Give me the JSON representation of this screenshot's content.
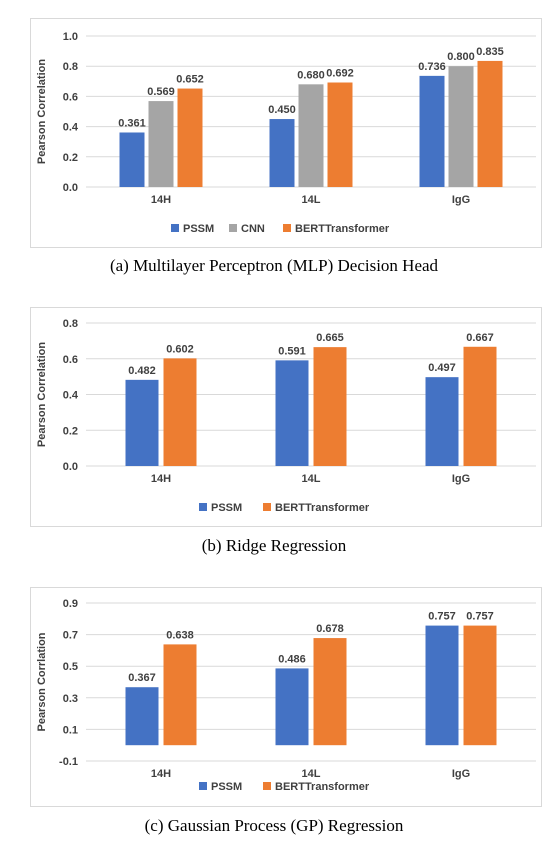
{
  "chart_data": [
    {
      "type": "bar",
      "caption": "(a) Multilayer Perceptron (MLP) Decision Head",
      "ylabel": "Pearson Correlation",
      "ylim": [
        0,
        1.0
      ],
      "yticks": [
        "0.0",
        "0.2",
        "0.4",
        "0.6",
        "0.8",
        "1.0"
      ],
      "ytick_values": [
        0,
        0.2,
        0.4,
        0.6,
        0.8,
        1.0
      ],
      "categories": [
        "14H",
        "14L",
        "IgG"
      ],
      "series": [
        {
          "name": "PSSM",
          "color": "#4472c4",
          "values": [
            0.361,
            0.45,
            0.736
          ],
          "labels": [
            "0.361",
            "0.450",
            "0.736"
          ]
        },
        {
          "name": "CNN",
          "color": "#a5a5a5",
          "values": [
            0.569,
            0.68,
            0.8
          ],
          "labels": [
            "0.569",
            "0.680",
            "0.800"
          ]
        },
        {
          "name": "BERTTransformer",
          "color": "#ed7d31",
          "values": [
            0.652,
            0.692,
            0.835
          ],
          "labels": [
            "0.652",
            "0.692",
            "0.835"
          ]
        }
      ],
      "grid": true,
      "legend": "bottom"
    },
    {
      "type": "bar",
      "caption": "(b) Ridge Regression",
      "ylabel": "Pearson Correlation",
      "ylim": [
        0,
        0.8
      ],
      "yticks": [
        "0.0",
        "0.2",
        "0.4",
        "0.6",
        "0.8"
      ],
      "ytick_values": [
        0,
        0.2,
        0.4,
        0.6,
        0.8
      ],
      "categories": [
        "14H",
        "14L",
        "IgG"
      ],
      "series": [
        {
          "name": "PSSM",
          "color": "#4472c4",
          "values": [
            0.482,
            0.591,
            0.497
          ],
          "labels": [
            "0.482",
            "0.591",
            "0.497"
          ]
        },
        {
          "name": "BERTTransformer",
          "color": "#ed7d31",
          "values": [
            0.602,
            0.665,
            0.667
          ],
          "labels": [
            "0.602",
            "0.665",
            "0.667"
          ]
        }
      ],
      "grid": true,
      "legend": "bottom"
    },
    {
      "type": "bar",
      "caption": "(c) Gaussian Process (GP) Regression",
      "ylabel": "Pearson Corrlation",
      "ylim": [
        -0.1,
        0.9
      ],
      "yticks": [
        "-0.1",
        "0.1",
        "0.3",
        "0.5",
        "0.7",
        "0.9"
      ],
      "ytick_values": [
        -0.1,
        0.1,
        0.3,
        0.5,
        0.7,
        0.9
      ],
      "categories": [
        "14H",
        "14L",
        "IgG"
      ],
      "series": [
        {
          "name": "PSSM",
          "color": "#4472c4",
          "values": [
            0.367,
            0.486,
            0.757
          ],
          "labels": [
            "0.367",
            "0.486",
            "0.757"
          ]
        },
        {
          "name": "BERTTransformer",
          "color": "#ed7d31",
          "values": [
            0.638,
            0.678,
            0.757
          ],
          "labels": [
            "0.638",
            "0.678",
            "0.757"
          ]
        }
      ],
      "grid": true,
      "legend": "bottom"
    }
  ]
}
